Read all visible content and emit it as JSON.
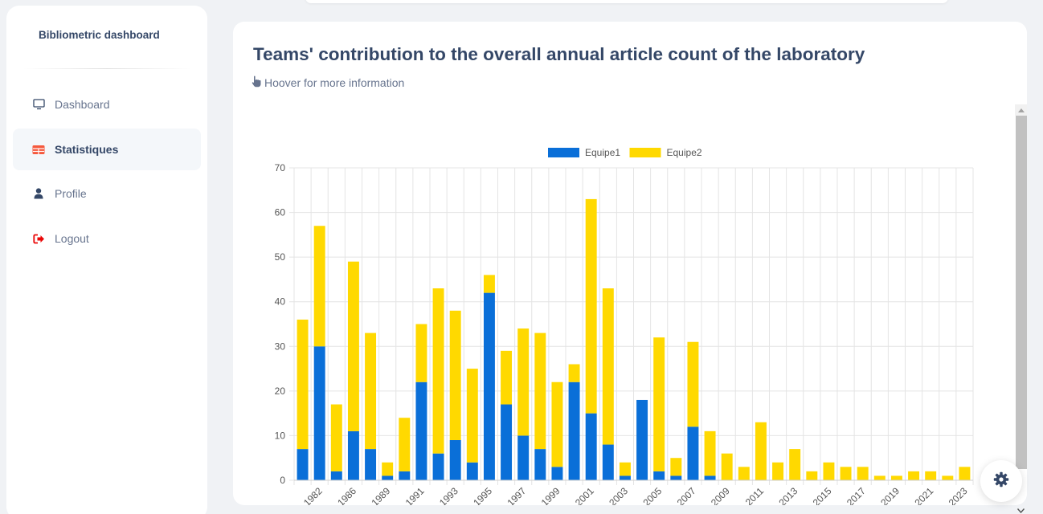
{
  "sidebar": {
    "brand": "Bibliometric dashboard",
    "items": [
      {
        "label": "Dashboard",
        "icon": "monitor-icon",
        "active": false
      },
      {
        "label": "Statistiques",
        "icon": "table-icon",
        "active": true
      },
      {
        "label": "Profile",
        "icon": "user-icon",
        "active": false
      },
      {
        "label": "Logout",
        "icon": "logout-icon",
        "active": false
      }
    ]
  },
  "card": {
    "title": "Teams' contribution to the overall annual article count of the laboratory",
    "hint": "Hoover for more information"
  },
  "colors": {
    "equipe1": "#0a6fd8",
    "equipe2": "#ffd900",
    "accent_red": "#ea0606",
    "text_dark": "#344767"
  },
  "chart_data": {
    "type": "bar",
    "stacked": true,
    "title": "",
    "xlabel": "",
    "ylabel": "",
    "ylim": [
      0,
      70
    ],
    "yticks": [
      0,
      10,
      20,
      30,
      40,
      50,
      60,
      70
    ],
    "legend_position": "top",
    "grid": true,
    "categories": [
      "1981",
      "1982",
      "1985",
      "1986",
      "1987",
      "1989",
      "1990",
      "1991",
      "1992",
      "1993",
      "1994",
      "1995",
      "1996",
      "1997",
      "1998",
      "1999",
      "2000",
      "2001",
      "2002",
      "2003",
      "2004",
      "2005",
      "2006",
      "2007",
      "2008",
      "2009",
      "2010",
      "2011",
      "2012",
      "2013",
      "2014",
      "2015",
      "2016",
      "2017",
      "2018",
      "2019",
      "2020",
      "2021",
      "2022",
      "2023"
    ],
    "tick_labels": [
      "",
      "1982",
      "",
      "1986",
      "",
      "1989",
      "",
      "1991",
      "",
      "1993",
      "",
      "1995",
      "",
      "1997",
      "",
      "1999",
      "",
      "2001",
      "",
      "2003",
      "",
      "2005",
      "",
      "2007",
      "",
      "2009",
      "",
      "2011",
      "",
      "2013",
      "",
      "2015",
      "",
      "2017",
      "",
      "2019",
      "",
      "2021",
      "",
      "2023"
    ],
    "series": [
      {
        "name": "Equipe1",
        "values": [
          7,
          30,
          2,
          11,
          7,
          1,
          2,
          22,
          6,
          9,
          4,
          42,
          17,
          10,
          7,
          3,
          22,
          15,
          8,
          1,
          18,
          2,
          1,
          12,
          1,
          0,
          0,
          0,
          0,
          0,
          0,
          0,
          0,
          0,
          0,
          0,
          0,
          0,
          0,
          0
        ]
      },
      {
        "name": "Equipe2",
        "values": [
          29,
          27,
          15,
          38,
          26,
          3,
          12,
          13,
          37,
          29,
          21,
          4,
          12,
          24,
          26,
          19,
          4,
          48,
          35,
          3,
          0,
          30,
          4,
          19,
          10,
          6,
          3,
          13,
          4,
          7,
          2,
          4,
          3,
          3,
          1,
          1,
          2,
          2,
          1,
          3
        ]
      }
    ]
  }
}
